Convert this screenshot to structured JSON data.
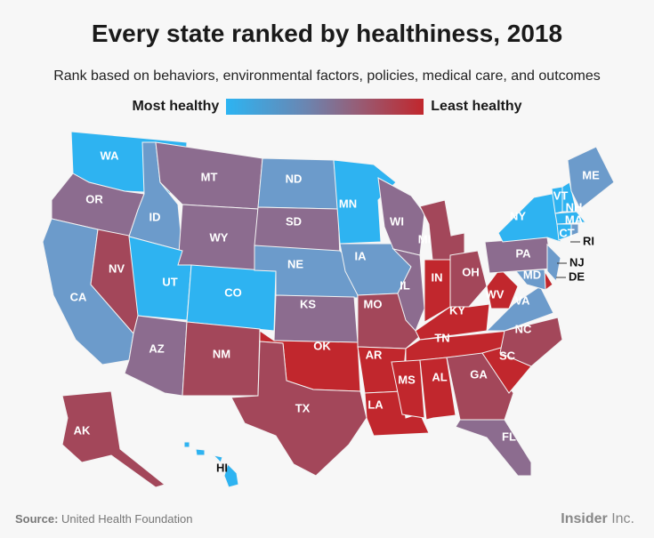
{
  "title": "Every state ranked by healthiness, 2018",
  "subtitle": "Rank based on behaviors, environmental factors, policies, medical care, and outcomes",
  "legend": {
    "left": "Most healthy",
    "right": "Least healthy",
    "colors": [
      "#2eb3f1",
      "#6c9bcb",
      "#8c6c8f",
      "#a3475a",
      "#c1272d"
    ]
  },
  "states": [
    {
      "abbr": "WA",
      "level": 1
    },
    {
      "abbr": "OR",
      "level": 3
    },
    {
      "abbr": "CA",
      "level": 2
    },
    {
      "abbr": "NV",
      "level": 4
    },
    {
      "abbr": "ID",
      "level": 2
    },
    {
      "abbr": "MT",
      "level": 3
    },
    {
      "abbr": "WY",
      "level": 3
    },
    {
      "abbr": "UT",
      "level": 1
    },
    {
      "abbr": "CO",
      "level": 1
    },
    {
      "abbr": "AZ",
      "level": 3
    },
    {
      "abbr": "NM",
      "level": 4
    },
    {
      "abbr": "ND",
      "level": 2
    },
    {
      "abbr": "SD",
      "level": 3
    },
    {
      "abbr": "NE",
      "level": 2
    },
    {
      "abbr": "KS",
      "level": 3
    },
    {
      "abbr": "OK",
      "level": 5
    },
    {
      "abbr": "TX",
      "level": 4
    },
    {
      "abbr": "MN",
      "level": 1
    },
    {
      "abbr": "IA",
      "level": 2
    },
    {
      "abbr": "MO",
      "level": 4
    },
    {
      "abbr": "AR",
      "level": 5
    },
    {
      "abbr": "LA",
      "level": 5
    },
    {
      "abbr": "WI",
      "level": 3
    },
    {
      "abbr": "IL",
      "level": 3
    },
    {
      "abbr": "MI",
      "level": 4
    },
    {
      "abbr": "IN",
      "level": 5
    },
    {
      "abbr": "OH",
      "level": 4
    },
    {
      "abbr": "KY",
      "level": 5
    },
    {
      "abbr": "TN",
      "level": 5
    },
    {
      "abbr": "MS",
      "level": 5
    },
    {
      "abbr": "AL",
      "level": 5
    },
    {
      "abbr": "GA",
      "level": 4
    },
    {
      "abbr": "FL",
      "level": 3
    },
    {
      "abbr": "SC",
      "level": 5
    },
    {
      "abbr": "NC",
      "level": 4
    },
    {
      "abbr": "VA",
      "level": 2
    },
    {
      "abbr": "WV",
      "level": 5
    },
    {
      "abbr": "PA",
      "level": 3
    },
    {
      "abbr": "NY",
      "level": 1
    },
    {
      "abbr": "VT",
      "level": 1
    },
    {
      "abbr": "NH",
      "level": 1
    },
    {
      "abbr": "MA",
      "level": 1
    },
    {
      "abbr": "CT",
      "level": 1
    },
    {
      "abbr": "RI",
      "level": 2
    },
    {
      "abbr": "ME",
      "level": 2
    },
    {
      "abbr": "NJ",
      "level": 2
    },
    {
      "abbr": "DE",
      "level": 5
    },
    {
      "abbr": "MD",
      "level": 2
    },
    {
      "abbr": "AK",
      "level": 4
    },
    {
      "abbr": "HI",
      "level": 1
    }
  ],
  "footer": {
    "source_label": "Source:",
    "source": "United Health Foundation",
    "brand": "Insider",
    "brand_suffix": "Inc."
  }
}
